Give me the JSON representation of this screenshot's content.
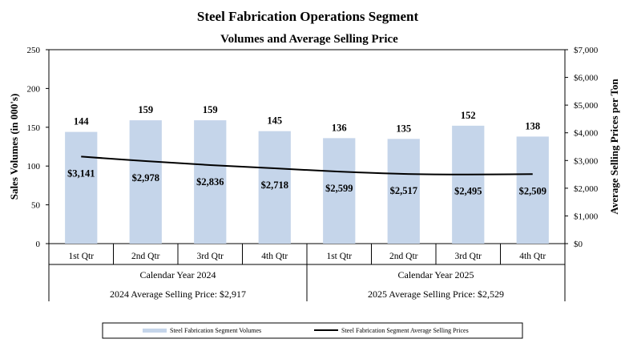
{
  "chart_data": {
    "type": "bar+line",
    "title": "Steel Fabrication Operations Segment",
    "subtitle": "Volumes and Average Selling Price",
    "ylabel": "Sales Volumes (in 000's)",
    "y2label": "Average Selling Prices per Ton",
    "ylim": [
      0,
      250
    ],
    "yticks": [
      "0",
      "50",
      "100",
      "150",
      "200",
      "250"
    ],
    "y2lim": [
      0,
      7000
    ],
    "y2ticks": [
      "$0",
      "$1,000",
      "$2,000",
      "$3,000",
      "$4,000",
      "$5,000",
      "$6,000",
      "$7,000"
    ],
    "categories": [
      "1st Qtr",
      "2nd Qtr",
      "3rd Qtr",
      "4th Qtr",
      "1st Qtr",
      "2nd Qtr",
      "3rd Qtr",
      "4th Qtr"
    ],
    "groups": [
      {
        "label": "Calendar Year 2024",
        "avg_label": "2024 Average Selling Price: $2,917"
      },
      {
        "label": "Calendar Year 2025",
        "avg_label": "2025 Average Selling Price: $2,529"
      }
    ],
    "series": [
      {
        "name": "Steel Fabrication Segment Volumes",
        "kind": "bar",
        "axis": "left",
        "color": "#c5d5ea",
        "values": [
          144,
          159,
          159,
          145,
          136,
          135,
          152,
          138
        ],
        "labels": [
          "144",
          "159",
          "159",
          "145",
          "136",
          "135",
          "152",
          "138"
        ]
      },
      {
        "name": "Steel Fabrication Segment Average Selling Prices",
        "kind": "line",
        "axis": "right",
        "color": "#000000",
        "values": [
          3141,
          2978,
          2836,
          2718,
          2599,
          2517,
          2495,
          2509
        ],
        "labels": [
          "$3,141",
          "$2,978",
          "$2,836",
          "$2,718",
          "$2,599",
          "$2,517",
          "$2,495",
          "$2,509"
        ]
      }
    ],
    "grid": false,
    "legend_position": "bottom"
  }
}
